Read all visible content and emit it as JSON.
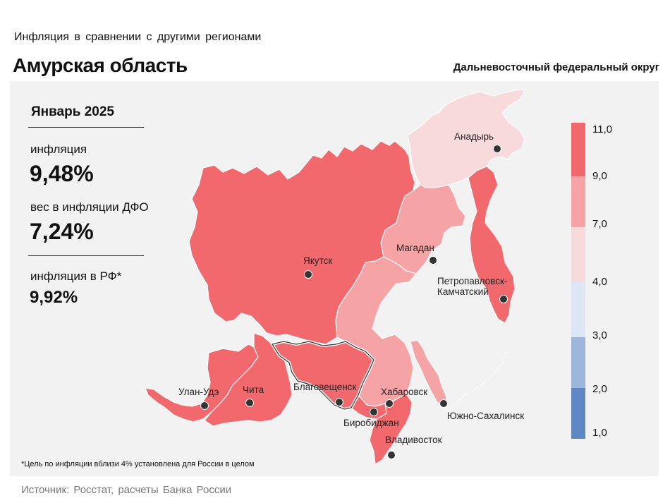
{
  "header": {
    "subtitle": "Инфляция  в сравнении  с другими  регионами",
    "region": "Амурская область",
    "district": "Дальневосточный федеральный округ"
  },
  "stats": {
    "period": "Январь 2025",
    "inflation_label": "инфляция",
    "inflation_value": "9,48%",
    "weight_label": "вес в инфляции  ДФО",
    "weight_value": "7,24%",
    "rf_label": "инфляция  в РФ*",
    "rf_value": "9,92%"
  },
  "map": {
    "cities": {
      "anadyr": "Анадырь",
      "magadan": "Магадан",
      "yakutsk": "Якутск",
      "petropavlovsk_1": "Петропавловск-",
      "petropavlovsk_2": "Камчатский",
      "ulan_ude": "Улан-Удэ",
      "chita": "Чита",
      "blagoveshchensk": "Благовещенск",
      "khabarovsk": "Хабаровск",
      "yuzhno": "Южно-Сахалинск",
      "birobidzhan": "Биробиджан",
      "vladivostok": "Владивосток"
    },
    "colors": {
      "high": "#f1686d",
      "mid": "#f5a3a5",
      "low": "#f8d9dc",
      "scale_4_3": "#dce6f4",
      "scale_3_2": "#9db7dc",
      "scale_2_1": "#5e87c4"
    }
  },
  "scale": {
    "labels": [
      "11,0",
      "9,0",
      "7,0",
      "4,0",
      "3,0",
      "2,0",
      "1,0"
    ]
  },
  "footnote": "*Цель по инфляции вблизи 4% установлена для России в целом",
  "source": "Источник: Росстат, расчеты  Банка  России"
}
